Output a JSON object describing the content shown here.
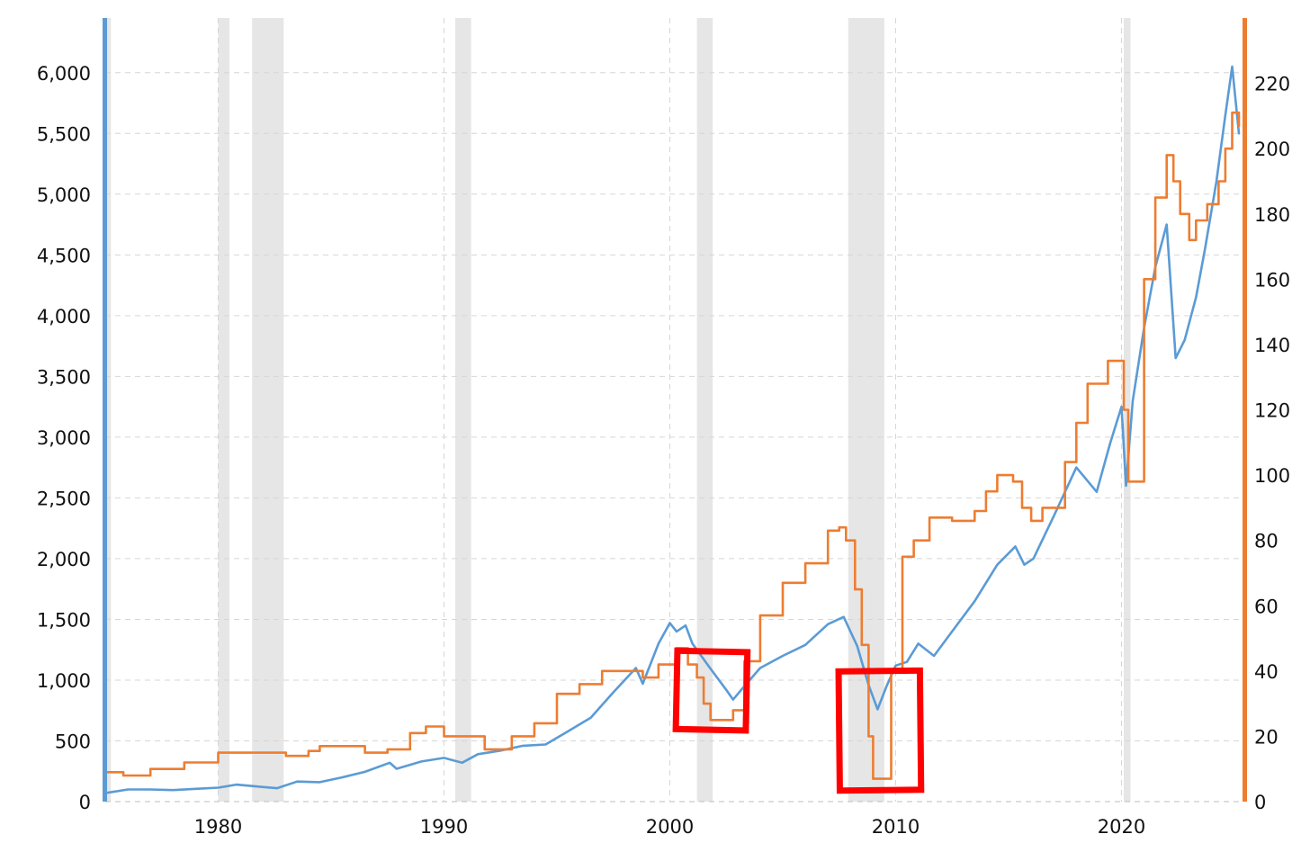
{
  "chart_data": {
    "type": "line",
    "title": "",
    "xlabel": "",
    "ylabel": "",
    "x_ticks": [
      "1980",
      "1990",
      "2000",
      "2010",
      "2020"
    ],
    "xlim": [
      1975,
      2025.4
    ],
    "left_axis": {
      "color": "#5b9bd5",
      "ylim": [
        0,
        6450
      ],
      "ticks": [
        "0",
        "500",
        "1,000",
        "1,500",
        "2,000",
        "2,500",
        "3,000",
        "3,500",
        "4,000",
        "4,500",
        "5,000",
        "5,500",
        "6,000"
      ],
      "tick_values": [
        0,
        500,
        1000,
        1500,
        2000,
        2500,
        3000,
        3500,
        4000,
        4500,
        5000,
        5500,
        6000
      ]
    },
    "right_axis": {
      "color": "#ed7d31",
      "ylim": [
        0,
        240
      ],
      "ticks": [
        "0",
        "20",
        "40",
        "60",
        "80",
        "100",
        "120",
        "140",
        "160",
        "180",
        "200",
        "220"
      ],
      "tick_values": [
        0,
        20,
        40,
        60,
        80,
        100,
        120,
        140,
        160,
        180,
        200,
        220
      ]
    },
    "grid": true,
    "recession_bands": [
      [
        1975.0,
        1975.25
      ],
      [
        1980.0,
        1980.5
      ],
      [
        1981.5,
        1982.9
      ],
      [
        1990.5,
        1991.2
      ],
      [
        2001.2,
        2001.9
      ],
      [
        2007.9,
        2009.5
      ],
      [
        2020.1,
        2020.4
      ]
    ],
    "series": [
      {
        "axis": "left",
        "color": "#5b9bd5",
        "x": [
          1975.0,
          1976.0,
          1977.0,
          1978.0,
          1979.0,
          1980.0,
          1980.8,
          1982.0,
          1982.6,
          1983.5,
          1984.5,
          1985.5,
          1986.5,
          1987.6,
          1987.9,
          1989.0,
          1990.0,
          1990.8,
          1991.5,
          1992.5,
          1993.5,
          1994.5,
          1995.5,
          1996.5,
          1997.5,
          1998.5,
          1998.8,
          1999.5,
          2000.0,
          2000.3,
          2000.7,
          2001.0,
          2001.7,
          2002.5,
          2002.8,
          2003.3,
          2004.0,
          2005.0,
          2006.0,
          2007.0,
          2007.7,
          2008.3,
          2008.8,
          2009.2,
          2009.6,
          2010.0,
          2010.5,
          2011.0,
          2011.7,
          2012.5,
          2013.5,
          2014.5,
          2015.3,
          2015.7,
          2016.1,
          2017.0,
          2018.0,
          2018.9,
          2019.5,
          2020.0,
          2020.2,
          2020.5,
          2021.0,
          2021.5,
          2022.0,
          2022.4,
          2022.8,
          2023.3,
          2023.7,
          2024.2,
          2024.6,
          2024.9,
          2025.2
        ],
        "values": [
          70,
          100,
          100,
          95,
          105,
          115,
          140,
          120,
          110,
          165,
          160,
          200,
          245,
          320,
          270,
          330,
          360,
          320,
          390,
          420,
          460,
          470,
          580,
          690,
          900,
          1100,
          970,
          1300,
          1470,
          1400,
          1450,
          1300,
          1120,
          920,
          840,
          950,
          1100,
          1200,
          1290,
          1460,
          1520,
          1280,
          960,
          760,
          950,
          1120,
          1150,
          1300,
          1200,
          1400,
          1650,
          1950,
          2100,
          1950,
          2000,
          2350,
          2750,
          2550,
          2950,
          3250,
          2600,
          3300,
          3900,
          4400,
          4750,
          3650,
          3800,
          4150,
          4550,
          5100,
          5650,
          6050,
          5500
        ]
      },
      {
        "axis": "right",
        "color": "#ed7d31",
        "x": [
          1975.0,
          1975.8,
          1977.0,
          1978.5,
          1980.0,
          1981.0,
          1982.0,
          1983.0,
          1984.0,
          1984.5,
          1985.5,
          1986.5,
          1987.5,
          1988.5,
          1989.2,
          1990.0,
          1991.0,
          1991.8,
          1993.0,
          1994.0,
          1995.0,
          1996.0,
          1997.0,
          1998.0,
          1998.8,
          1999.5,
          2000.3,
          2000.8,
          2001.2,
          2001.5,
          2001.8,
          2002.3,
          2002.8,
          2003.3,
          2004.0,
          2005.0,
          2006.0,
          2007.0,
          2007.5,
          2007.8,
          2008.2,
          2008.5,
          2008.8,
          2009.0,
          2009.3,
          2009.6,
          2009.8,
          2010.3,
          2010.8,
          2011.5,
          2012.5,
          2013.5,
          2014.0,
          2014.5,
          2015.2,
          2015.6,
          2016.0,
          2016.5,
          2017.5,
          2018.0,
          2018.5,
          2019.4,
          2019.9,
          2020.1,
          2020.3,
          2020.7,
          2021.0,
          2021.5,
          2022.0,
          2022.3,
          2022.6,
          2023.0,
          2023.3,
          2023.8,
          2024.3,
          2024.6,
          2024.9,
          2025.2
        ],
        "values": [
          9,
          8,
          10,
          12,
          15,
          15,
          15,
          14,
          15.5,
          17,
          17,
          15,
          16,
          21,
          23,
          20,
          20,
          16,
          20,
          24,
          33,
          36,
          40,
          40,
          38,
          42,
          47,
          42,
          38,
          30,
          25,
          25,
          28,
          43,
          57,
          67,
          73,
          83,
          84,
          80,
          65,
          48,
          20,
          7,
          7,
          7,
          40,
          75,
          80,
          87,
          86,
          89,
          95,
          100,
          98,
          90,
          86,
          90,
          104,
          116,
          128,
          135,
          135,
          120,
          98,
          98,
          160,
          185,
          198,
          190,
          180,
          172,
          178,
          183,
          190,
          200,
          211,
          207
        ]
      }
    ],
    "annotations": [
      {
        "type": "highlight-box",
        "color": "#ff0000",
        "x_range": [
          2000.3,
          2003.4
        ],
        "y_right_range": [
          22,
          46
        ]
      },
      {
        "type": "highlight-box",
        "color": "#ff0000",
        "x_range": [
          2007.5,
          2011.1
        ],
        "y_right_range": [
          3.5,
          40
        ]
      }
    ]
  }
}
